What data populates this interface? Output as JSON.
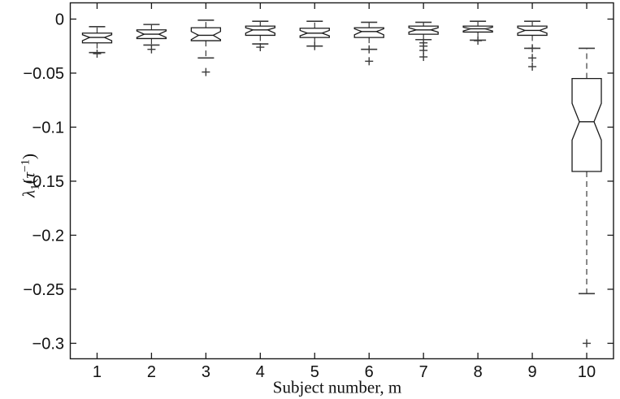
{
  "figure": {
    "background": "#ffffff",
    "line_color": "#1a1a1a",
    "whisker_color": "#3a3a3a",
    "text_color": "#111111"
  },
  "chart_data": {
    "type": "boxplot",
    "title": "",
    "xlabel": "Subject number, m",
    "ylabel": "λ1(τ−1)",
    "ylabel_parts": {
      "lambda": "λ",
      "subscript": "1",
      "open_paren": "(",
      "tau": "τ",
      "superscript": "−1",
      "close_paren": ")"
    },
    "grid": false,
    "legend": null,
    "xlim": [
      0.5,
      10.5
    ],
    "ylim": [
      -0.3147,
      0.0154
    ],
    "x_ticks": [
      {
        "value": 1,
        "label": "1"
      },
      {
        "value": 2,
        "label": "2"
      },
      {
        "value": 3,
        "label": "3"
      },
      {
        "value": 4,
        "label": "4"
      },
      {
        "value": 5,
        "label": "5"
      },
      {
        "value": 6,
        "label": "6"
      },
      {
        "value": 7,
        "label": "7"
      },
      {
        "value": 8,
        "label": "8"
      },
      {
        "value": 9,
        "label": "9"
      },
      {
        "value": 10,
        "label": "10"
      }
    ],
    "y_ticks": [
      {
        "value": 0,
        "label": "0"
      },
      {
        "value": -0.05,
        "label": "−0.05"
      },
      {
        "value": -0.1,
        "label": "−0.1"
      },
      {
        "value": -0.15,
        "label": "−0.15"
      },
      {
        "value": -0.2,
        "label": "−0.2"
      },
      {
        "value": -0.25,
        "label": "−0.25"
      },
      {
        "value": -0.3,
        "label": "−0.3"
      }
    ],
    "boxes": [
      {
        "x": 1,
        "whisker_low": -0.031,
        "q1": -0.022,
        "median": -0.017,
        "q3": -0.013,
        "whisker_high": -0.007,
        "notch_low": -0.02,
        "notch_high": -0.0145,
        "outliers": [
          -0.032
        ]
      },
      {
        "x": 2,
        "whisker_low": -0.024,
        "q1": -0.018,
        "median": -0.014,
        "q3": -0.01,
        "whisker_high": -0.005,
        "notch_low": -0.017,
        "notch_high": -0.011,
        "outliers": [
          -0.028
        ]
      },
      {
        "x": 3,
        "whisker_low": -0.036,
        "q1": -0.02,
        "median": -0.015,
        "q3": -0.008,
        "whisker_high": -0.001,
        "notch_low": -0.019,
        "notch_high": -0.0115,
        "outliers": [
          -0.049
        ]
      },
      {
        "x": 4,
        "whisker_low": -0.023,
        "q1": -0.015,
        "median": -0.01,
        "q3": -0.0065,
        "whisker_high": -0.002,
        "notch_low": -0.013,
        "notch_high": -0.008,
        "outliers": [
          -0.026
        ]
      },
      {
        "x": 5,
        "whisker_low": -0.025,
        "q1": -0.017,
        "median": -0.013,
        "q3": -0.0085,
        "whisker_high": -0.002,
        "notch_low": -0.0155,
        "notch_high": -0.0105,
        "outliers": [
          -0.025
        ]
      },
      {
        "x": 6,
        "whisker_low": -0.028,
        "q1": -0.017,
        "median": -0.0115,
        "q3": -0.008,
        "whisker_high": -0.003,
        "notch_low": -0.0145,
        "notch_high": -0.009,
        "outliers": [
          -0.028,
          -0.039
        ]
      },
      {
        "x": 7,
        "whisker_low": -0.019,
        "q1": -0.014,
        "median": -0.01,
        "q3": -0.0065,
        "whisker_high": -0.003,
        "notch_low": -0.012,
        "notch_high": -0.008,
        "outliers": [
          -0.022,
          -0.025,
          -0.029,
          -0.035
        ]
      },
      {
        "x": 8,
        "whisker_low": -0.0195,
        "q1": -0.012,
        "median": -0.009,
        "q3": -0.0065,
        "whisker_high": -0.002,
        "notch_low": -0.011,
        "notch_high": -0.0075,
        "outliers": [
          -0.02
        ]
      },
      {
        "x": 9,
        "whisker_low": -0.027,
        "q1": -0.015,
        "median": -0.0105,
        "q3": -0.0065,
        "whisker_high": -0.002,
        "notch_low": -0.013,
        "notch_high": -0.008,
        "outliers": [
          -0.027,
          -0.036,
          -0.044
        ]
      },
      {
        "x": 10,
        "whisker_low": -0.254,
        "q1": -0.141,
        "median": -0.095,
        "q3": -0.055,
        "whisker_high": -0.027,
        "notch_low": -0.112,
        "notch_high": -0.078,
        "outliers": [
          -0.3
        ]
      }
    ]
  }
}
